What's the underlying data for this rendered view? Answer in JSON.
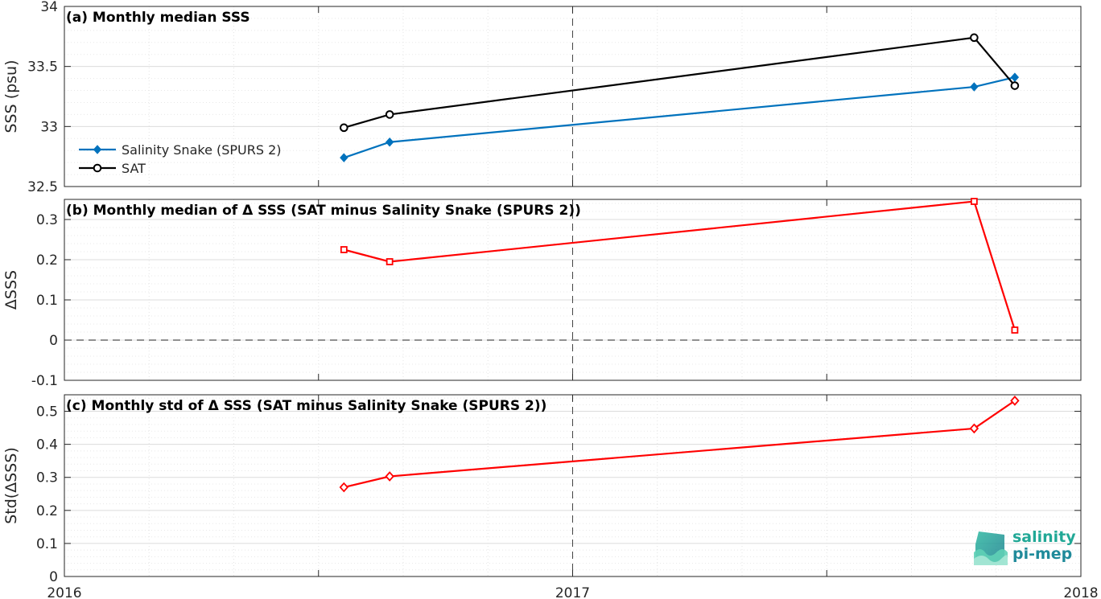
{
  "chart_data": [
    {
      "type": "line",
      "title": "(a) Monthly median SSS",
      "ylabel": "SSS (psu)",
      "ylim": [
        32.5,
        34
      ],
      "yticks": [
        "32.5",
        "33",
        "33.5",
        "34"
      ],
      "legend_position": "left",
      "series": [
        {
          "name": "Salinity Snake (SPURS 2)",
          "color": "#0072bd",
          "marker": "diamond-filled",
          "x": [
            2016.55,
            2016.64,
            2017.79,
            2017.87
          ],
          "values": [
            32.74,
            32.87,
            33.33,
            33.41
          ]
        },
        {
          "name": "SAT",
          "color": "#000000",
          "marker": "circle-open",
          "x": [
            2016.55,
            2016.64,
            2017.79,
            2017.87
          ],
          "values": [
            32.99,
            33.1,
            33.74,
            33.34
          ]
        }
      ]
    },
    {
      "type": "line",
      "title": "(b) Monthly median of Δ SSS (SAT minus Salinity Snake (SPURS 2))",
      "ylabel": "ΔSSS",
      "ylim": [
        -0.1,
        0.35
      ],
      "yticks": [
        "-0.1",
        "0",
        "0.1",
        "0.2",
        "0.3"
      ],
      "series": [
        {
          "color": "#ff0000",
          "marker": "square-open",
          "x": [
            2016.55,
            2016.64,
            2017.79,
            2017.87
          ],
          "values": [
            0.225,
            0.195,
            0.345,
            0.025
          ]
        }
      ]
    },
    {
      "type": "line",
      "title": "(c) Monthly std of Δ SSS (SAT minus Salinity Snake (SPURS 2))",
      "ylabel": "Std(ΔSSS)",
      "ylim": [
        0,
        0.55
      ],
      "yticks": [
        "0",
        "0.1",
        "0.2",
        "0.3",
        "0.4",
        "0.5"
      ],
      "xlim": [
        2016,
        2018
      ],
      "xticks": [
        "2016",
        "2017",
        "2018"
      ],
      "series": [
        {
          "color": "#ff0000",
          "marker": "diamond-open",
          "x": [
            2016.55,
            2016.64,
            2017.79,
            2017.87
          ],
          "values": [
            0.27,
            0.303,
            0.448,
            0.532
          ]
        }
      ]
    }
  ],
  "logo": {
    "line1": "salinity",
    "line2": "pi-mep"
  }
}
